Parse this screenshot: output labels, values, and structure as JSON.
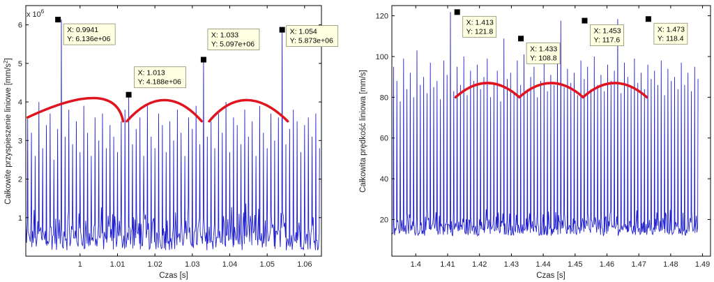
{
  "chart_data": [
    {
      "type": "line",
      "xlabel": "Czas [s]",
      "ylabel": "Całkowite przyspieszenie liniowe [mm/s",
      "ylabel_sup": "2",
      "ylabel_end": "]",
      "y_exponent_label": "x 10",
      "y_exponent": "6",
      "xlim": [
        0.9855,
        1.0645
      ],
      "ylim": [
        0,
        6.5
      ],
      "xticks": [
        1,
        1.01,
        1.02,
        1.03,
        1.04,
        1.05,
        1.06
      ],
      "xtick_labels": [
        "1",
        "1.01",
        "1.02",
        "1.03",
        "1.04",
        "1.05",
        "1.06"
      ],
      "yticks": [
        1,
        2,
        3,
        4,
        5,
        6
      ],
      "ytick_labels": [
        "1",
        "2",
        "3",
        "4",
        "5",
        "6"
      ],
      "grid": false,
      "line_color": "#1f1fd0",
      "series": [
        {
          "peak_interval": 0.001,
          "peaks": [
            3.6,
            3.2,
            2.6,
            4.0,
            2.8,
            3.4,
            3.7,
            2.5,
            3.3,
            6.136,
            3.1,
            3.8,
            2.9,
            3.5,
            2.7,
            3.9,
            3.2,
            2.6,
            3.6,
            3.0,
            3.7,
            2.8,
            3.4,
            3.1,
            2.7,
            3.5,
            3.8,
            4.188,
            2.9,
            3.3,
            3.6,
            2.6,
            3.9,
            3.1,
            2.8,
            3.7,
            3.4,
            2.7,
            3.5,
            3.0,
            3.8,
            3.2,
            2.6,
            3.6,
            3.3,
            3.9,
            2.9,
            5.097,
            3.1,
            3.5,
            2.8,
            3.7,
            3.2,
            4.0,
            2.7,
            3.6,
            3.4,
            2.9,
            3.8,
            3.1,
            3.5,
            2.6,
            3.9,
            3.2,
            2.8,
            3.7,
            3.0,
            3.6,
            5.873,
            2.9,
            3.3,
            3.8,
            3.5,
            2.7,
            3.4,
            3.6,
            3.1,
            3.7,
            2.8
          ]
        }
      ],
      "markers": [
        {
          "x": 0.9941,
          "y": 6.136,
          "label_x": "X: 0.9941",
          "label_y": "Y: 6.136e+06"
        },
        {
          "x": 1.013,
          "y": 4.188,
          "label_x": "X: 1.013",
          "label_y": "Y: 4.188e+06"
        },
        {
          "x": 1.033,
          "y": 5.097,
          "label_x": "X: 1.033",
          "label_y": "Y: 5.097e+06"
        },
        {
          "x": 1.054,
          "y": 5.873,
          "label_x": "X: 1.054",
          "label_y": "Y: 5.873e+06"
        }
      ],
      "envelope_arcs": [
        {
          "x": [
            0.986,
            1.004,
            1.0115
          ],
          "y": [
            3.6,
            4.1,
            3.5
          ]
        },
        {
          "x": [
            1.0125,
            1.0225,
            1.0325
          ],
          "y": [
            3.5,
            4.05,
            3.5
          ]
        },
        {
          "x": [
            1.0345,
            1.0445,
            1.0555
          ],
          "y": [
            3.5,
            4.05,
            3.5
          ]
        }
      ],
      "envelope_color": "#e0141e"
    },
    {
      "type": "line",
      "xlabel": "Czas [s]",
      "ylabel": "Całkowita prędkość liniowa [mm/s",
      "ylabel_end": "]",
      "xlim": [
        1.3925,
        1.4925
      ],
      "ylim": [
        2,
        125
      ],
      "xticks": [
        1.4,
        1.41,
        1.42,
        1.43,
        1.44,
        1.45,
        1.46,
        1.47,
        1.48,
        1.49
      ],
      "xtick_labels": [
        "1.4",
        "1.41",
        "1.42",
        "1.43",
        "1.44",
        "1.45",
        "1.46",
        "1.47",
        "1.48",
        "1.49"
      ],
      "yticks": [
        20,
        40,
        60,
        80,
        100,
        120
      ],
      "ytick_labels": [
        "20",
        "40",
        "60",
        "80",
        "100",
        "120"
      ],
      "grid": false,
      "line_color": "#1f1fd0",
      "series": [
        {
          "peak_interval": 0.00105,
          "peaks": [
            95,
            88,
            78,
            99,
            84,
            92,
            80,
            103,
            86,
            90,
            82,
            97,
            85,
            88,
            79,
            98,
            91,
            121.8,
            83,
            95,
            86,
            100,
            81,
            93,
            88,
            96,
            84,
            90,
            99,
            80,
            87,
            93,
            78,
            108.8,
            89,
            92,
            82,
            98,
            86,
            101,
            84,
            90,
            95,
            80,
            88,
            97,
            83,
            91,
            86,
            99,
            117.6,
            85,
            94,
            87,
            92,
            81,
            98,
            89,
            95,
            84,
            100,
            86,
            91,
            83,
            96,
            88,
            93,
            118.4,
            82,
            97,
            90,
            85,
            99,
            87,
            92,
            84,
            96,
            89,
            93,
            86,
            98,
            81,
            94,
            88,
            90,
            84,
            97,
            86,
            92,
            83,
            95,
            89
          ]
        }
      ],
      "markers": [
        {
          "x": 1.413,
          "y": 121.8,
          "label_x": "X: 1.413",
          "label_y": "Y: 121.8"
        },
        {
          "x": 1.433,
          "y": 108.8,
          "label_x": "X: 1.433",
          "label_y": "Y: 108.8"
        },
        {
          "x": 1.453,
          "y": 117.6,
          "label_x": "X: 1.453",
          "label_y": "Y: 117.6"
        },
        {
          "x": 1.473,
          "y": 118.4,
          "label_x": "X: 1.473",
          "label_y": "Y: 118.4"
        }
      ],
      "envelope_arcs": [
        {
          "x": [
            1.4125,
            1.4225,
            1.4325
          ],
          "y": [
            80,
            87,
            80
          ]
        },
        {
          "x": [
            1.4325,
            1.4425,
            1.4525
          ],
          "y": [
            80,
            87,
            80
          ]
        },
        {
          "x": [
            1.4525,
            1.4625,
            1.4725
          ],
          "y": [
            80,
            87,
            80
          ]
        }
      ],
      "envelope_color": "#e0141e"
    }
  ]
}
